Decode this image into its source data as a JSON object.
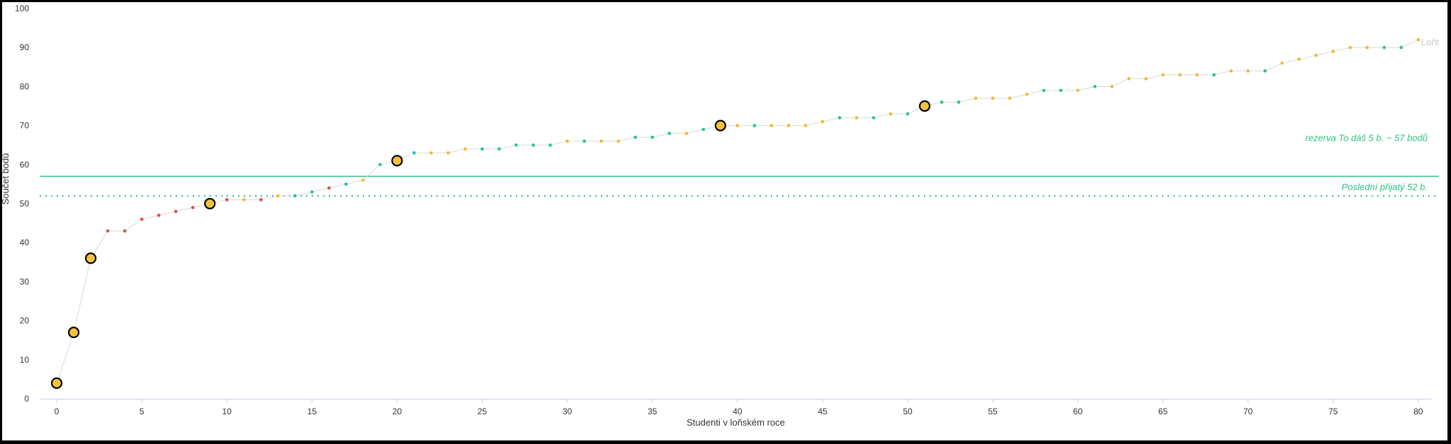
{
  "chart_data": {
    "type": "scatter",
    "xlabel": "Studenti v loňském roce",
    "ylabel": "Součet bodů",
    "xlim": [
      -1,
      80.8
    ],
    "ylim": [
      0,
      100
    ],
    "xticks": [
      0,
      5,
      10,
      15,
      20,
      25,
      30,
      35,
      40,
      45,
      50,
      55,
      60,
      65,
      70,
      75,
      80
    ],
    "yticks": [
      0,
      10,
      20,
      30,
      40,
      50,
      60,
      70,
      80,
      90,
      100
    ],
    "grid": false,
    "series_label": "Loňt",
    "colors": {
      "red": "#e04b4b",
      "orange": "#f5b731",
      "green": "#22c29e",
      "line": "#d8d8d8",
      "reference": "#2ec27e",
      "axis": "#c8d0ee",
      "highlight_fill": "#f5c33b",
      "highlight_stroke": "#000000"
    },
    "points": [
      {
        "x": 0,
        "y": 4,
        "c": "orange",
        "h": true
      },
      {
        "x": 1,
        "y": 17,
        "c": "orange",
        "h": true
      },
      {
        "x": 2,
        "y": 36,
        "c": "orange",
        "h": true
      },
      {
        "x": 3,
        "y": 43,
        "c": "red"
      },
      {
        "x": 4,
        "y": 43,
        "c": "red"
      },
      {
        "x": 5,
        "y": 46,
        "c": "red"
      },
      {
        "x": 6,
        "y": 47,
        "c": "red"
      },
      {
        "x": 7,
        "y": 48,
        "c": "red"
      },
      {
        "x": 8,
        "y": 49,
        "c": "red"
      },
      {
        "x": 9,
        "y": 50,
        "c": "orange",
        "h": true
      },
      {
        "x": 10,
        "y": 51,
        "c": "red"
      },
      {
        "x": 11,
        "y": 51,
        "c": "orange"
      },
      {
        "x": 12,
        "y": 51,
        "c": "red"
      },
      {
        "x": 13,
        "y": 52,
        "c": "orange"
      },
      {
        "x": 14,
        "y": 52,
        "c": "green"
      },
      {
        "x": 15,
        "y": 53,
        "c": "green"
      },
      {
        "x": 16,
        "y": 54,
        "c": "red"
      },
      {
        "x": 17,
        "y": 55,
        "c": "green"
      },
      {
        "x": 18,
        "y": 56,
        "c": "orange"
      },
      {
        "x": 19,
        "y": 60,
        "c": "green"
      },
      {
        "x": 20,
        "y": 61,
        "c": "orange",
        "h": true
      },
      {
        "x": 21,
        "y": 63,
        "c": "green"
      },
      {
        "x": 22,
        "y": 63,
        "c": "orange"
      },
      {
        "x": 23,
        "y": 63,
        "c": "orange"
      },
      {
        "x": 24,
        "y": 64,
        "c": "orange"
      },
      {
        "x": 25,
        "y": 64,
        "c": "green"
      },
      {
        "x": 26,
        "y": 64,
        "c": "green"
      },
      {
        "x": 27,
        "y": 65,
        "c": "green"
      },
      {
        "x": 28,
        "y": 65,
        "c": "green"
      },
      {
        "x": 29,
        "y": 65,
        "c": "green"
      },
      {
        "x": 30,
        "y": 66,
        "c": "orange"
      },
      {
        "x": 31,
        "y": 66,
        "c": "green"
      },
      {
        "x": 32,
        "y": 66,
        "c": "orange"
      },
      {
        "x": 33,
        "y": 66,
        "c": "orange"
      },
      {
        "x": 34,
        "y": 67,
        "c": "green"
      },
      {
        "x": 35,
        "y": 67,
        "c": "green"
      },
      {
        "x": 36,
        "y": 68,
        "c": "green"
      },
      {
        "x": 37,
        "y": 68,
        "c": "orange"
      },
      {
        "x": 38,
        "y": 69,
        "c": "green"
      },
      {
        "x": 39,
        "y": 70,
        "c": "orange",
        "h": true
      },
      {
        "x": 40,
        "y": 70,
        "c": "orange"
      },
      {
        "x": 41,
        "y": 70,
        "c": "green"
      },
      {
        "x": 42,
        "y": 70,
        "c": "orange"
      },
      {
        "x": 43,
        "y": 70,
        "c": "orange"
      },
      {
        "x": 44,
        "y": 70,
        "c": "orange"
      },
      {
        "x": 45,
        "y": 71,
        "c": "orange"
      },
      {
        "x": 46,
        "y": 72,
        "c": "green"
      },
      {
        "x": 47,
        "y": 72,
        "c": "orange"
      },
      {
        "x": 48,
        "y": 72,
        "c": "green"
      },
      {
        "x": 49,
        "y": 73,
        "c": "orange"
      },
      {
        "x": 50,
        "y": 73,
        "c": "green"
      },
      {
        "x": 51,
        "y": 75,
        "c": "orange",
        "h": true
      },
      {
        "x": 52,
        "y": 76,
        "c": "green"
      },
      {
        "x": 53,
        "y": 76,
        "c": "green"
      },
      {
        "x": 54,
        "y": 77,
        "c": "orange"
      },
      {
        "x": 55,
        "y": 77,
        "c": "orange"
      },
      {
        "x": 56,
        "y": 77,
        "c": "orange"
      },
      {
        "x": 57,
        "y": 78,
        "c": "orange"
      },
      {
        "x": 58,
        "y": 79,
        "c": "green"
      },
      {
        "x": 59,
        "y": 79,
        "c": "green"
      },
      {
        "x": 60,
        "y": 79,
        "c": "orange"
      },
      {
        "x": 61,
        "y": 80,
        "c": "green"
      },
      {
        "x": 62,
        "y": 80,
        "c": "orange"
      },
      {
        "x": 63,
        "y": 82,
        "c": "orange"
      },
      {
        "x": 64,
        "y": 82,
        "c": "orange"
      },
      {
        "x": 65,
        "y": 83,
        "c": "orange"
      },
      {
        "x": 66,
        "y": 83,
        "c": "orange"
      },
      {
        "x": 67,
        "y": 83,
        "c": "orange"
      },
      {
        "x": 68,
        "y": 83,
        "c": "green"
      },
      {
        "x": 69,
        "y": 84,
        "c": "orange"
      },
      {
        "x": 70,
        "y": 84,
        "c": "orange"
      },
      {
        "x": 71,
        "y": 84,
        "c": "green"
      },
      {
        "x": 72,
        "y": 86,
        "c": "orange"
      },
      {
        "x": 73,
        "y": 87,
        "c": "orange"
      },
      {
        "x": 74,
        "y": 88,
        "c": "orange"
      },
      {
        "x": 75,
        "y": 89,
        "c": "orange"
      },
      {
        "x": 76,
        "y": 90,
        "c": "orange"
      },
      {
        "x": 77,
        "y": 90,
        "c": "orange"
      },
      {
        "x": 78,
        "y": 90,
        "c": "green"
      },
      {
        "x": 79,
        "y": 90,
        "c": "green"
      },
      {
        "x": 80,
        "y": 92,
        "c": "orange"
      }
    ],
    "reference_lines": [
      {
        "y": 57,
        "style": "solid",
        "label": "rezerva To dáš 5 b. ~ 57 bodů"
      },
      {
        "y": 52,
        "style": "dotted",
        "label": "Poslední přijatý 52 b."
      }
    ]
  }
}
